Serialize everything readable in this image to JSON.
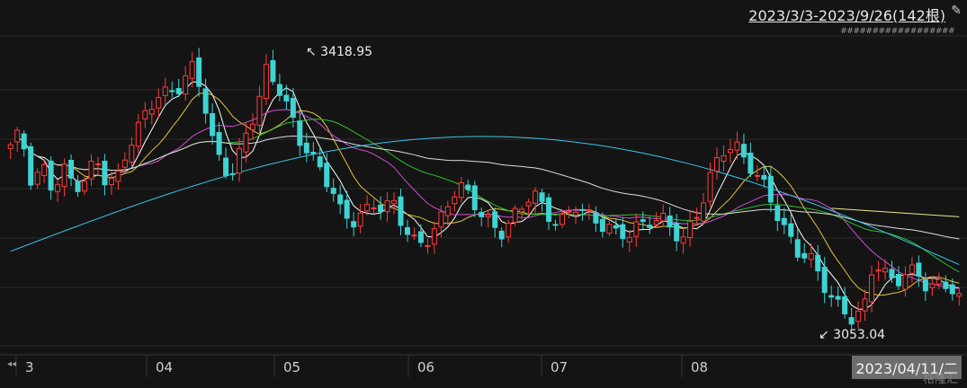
{
  "header": {
    "range_label": "2023/3/3-2023/9/26(142根)",
    "pin_icon": "pin-icon",
    "hash_text": "##################"
  },
  "footer": {
    "scroll_icon": "double-left-arrow-icon",
    "cursor_date": "2023/04/11/二",
    "watermark": "格隆汇"
  },
  "chart_data": {
    "type": "candlestick",
    "x_ticks": [
      "3",
      "04",
      "05",
      "06",
      "07",
      "08"
    ],
    "ylim": [
      3030,
      3440
    ],
    "annotations": [
      {
        "label": "3418.95",
        "value": 3418.95,
        "kind": "high"
      },
      {
        "label": "3053.04",
        "value": 3053.04,
        "kind": "low"
      }
    ],
    "colors": {
      "up": "#ff3b3b",
      "down": "#3fd3d3",
      "ma5": "#ffffff",
      "ma10": "#e0c340",
      "ma20": "#d04ed0",
      "ma30": "#2fc12f",
      "ma60": "#dcdcdc",
      "ma120": "#37c5e8",
      "ma_long": "#f0e68c",
      "grid": "#2a2a2a"
    },
    "candles_close_keypoints": [
      3290,
      3310,
      3250,
      3270,
      3230,
      3260,
      3245,
      3255,
      3275,
      3240,
      3250,
      3300,
      3320,
      3340,
      3360,
      3370,
      3380,
      3395,
      3360,
      3300,
      3270,
      3260,
      3300,
      3340,
      3400,
      3380,
      3340,
      3300,
      3290,
      3270,
      3240,
      3200,
      3195,
      3210,
      3220,
      3205,
      3215,
      3190,
      3170,
      3165,
      3180,
      3220,
      3250,
      3230,
      3200,
      3190,
      3185,
      3200,
      3210,
      3230,
      3215,
      3200,
      3195,
      3210,
      3205,
      3200,
      3190,
      3170,
      3175,
      3195,
      3200,
      3195,
      3180,
      3170,
      3200,
      3225,
      3260,
      3290,
      3300,
      3280,
      3250,
      3230,
      3205,
      3180,
      3150,
      3140,
      3120,
      3100,
      3080,
      3060,
      3070,
      3150,
      3130,
      3110,
      3120,
      3130,
      3115,
      3110,
      3105,
      3090
    ]
  }
}
